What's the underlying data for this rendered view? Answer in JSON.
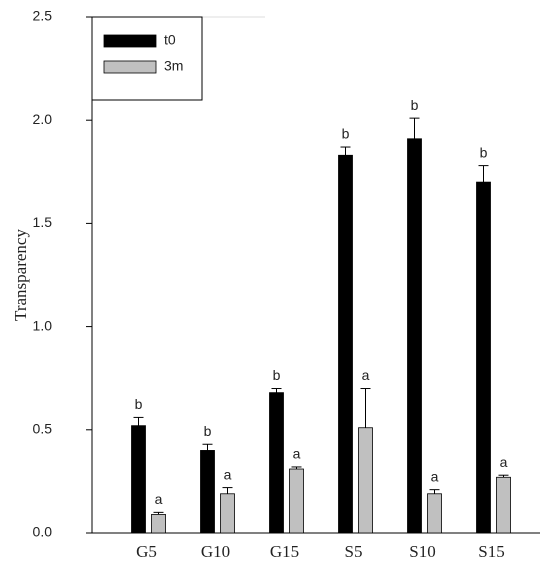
{
  "chart_data": {
    "type": "bar",
    "y_label": "Transparency",
    "categories": [
      "G5",
      "G10",
      "G15",
      "S5",
      "S10",
      "S15"
    ],
    "series": [
      {
        "name": "t0",
        "color": "#000000",
        "values": [
          0.52,
          0.4,
          0.68,
          1.83,
          1.91,
          1.7
        ],
        "errors": [
          0.04,
          0.03,
          0.02,
          0.04,
          0.1,
          0.08
        ],
        "letters": [
          "b",
          "b",
          "b",
          "b",
          "b",
          "b"
        ]
      },
      {
        "name": "3m",
        "color": "#c0c0c0",
        "values": [
          0.09,
          0.19,
          0.31,
          0.51,
          0.19,
          0.27
        ],
        "errors": [
          0.01,
          0.03,
          0.01,
          0.19,
          0.02,
          0.01
        ],
        "letters": [
          "a",
          "a",
          "a",
          "a",
          "a",
          "a"
        ]
      }
    ],
    "ylim": [
      0,
      2.5
    ],
    "yticks": [
      {
        "value": 0,
        "label": "0.0"
      },
      {
        "value": 0.5,
        "label": "0.5"
      },
      {
        "value": 1,
        "label": "1.0"
      },
      {
        "value": 1.5,
        "label": "1.5"
      },
      {
        "value": 2,
        "label": "2.0"
      },
      {
        "value": 2.5,
        "label": "2.5"
      }
    ]
  }
}
